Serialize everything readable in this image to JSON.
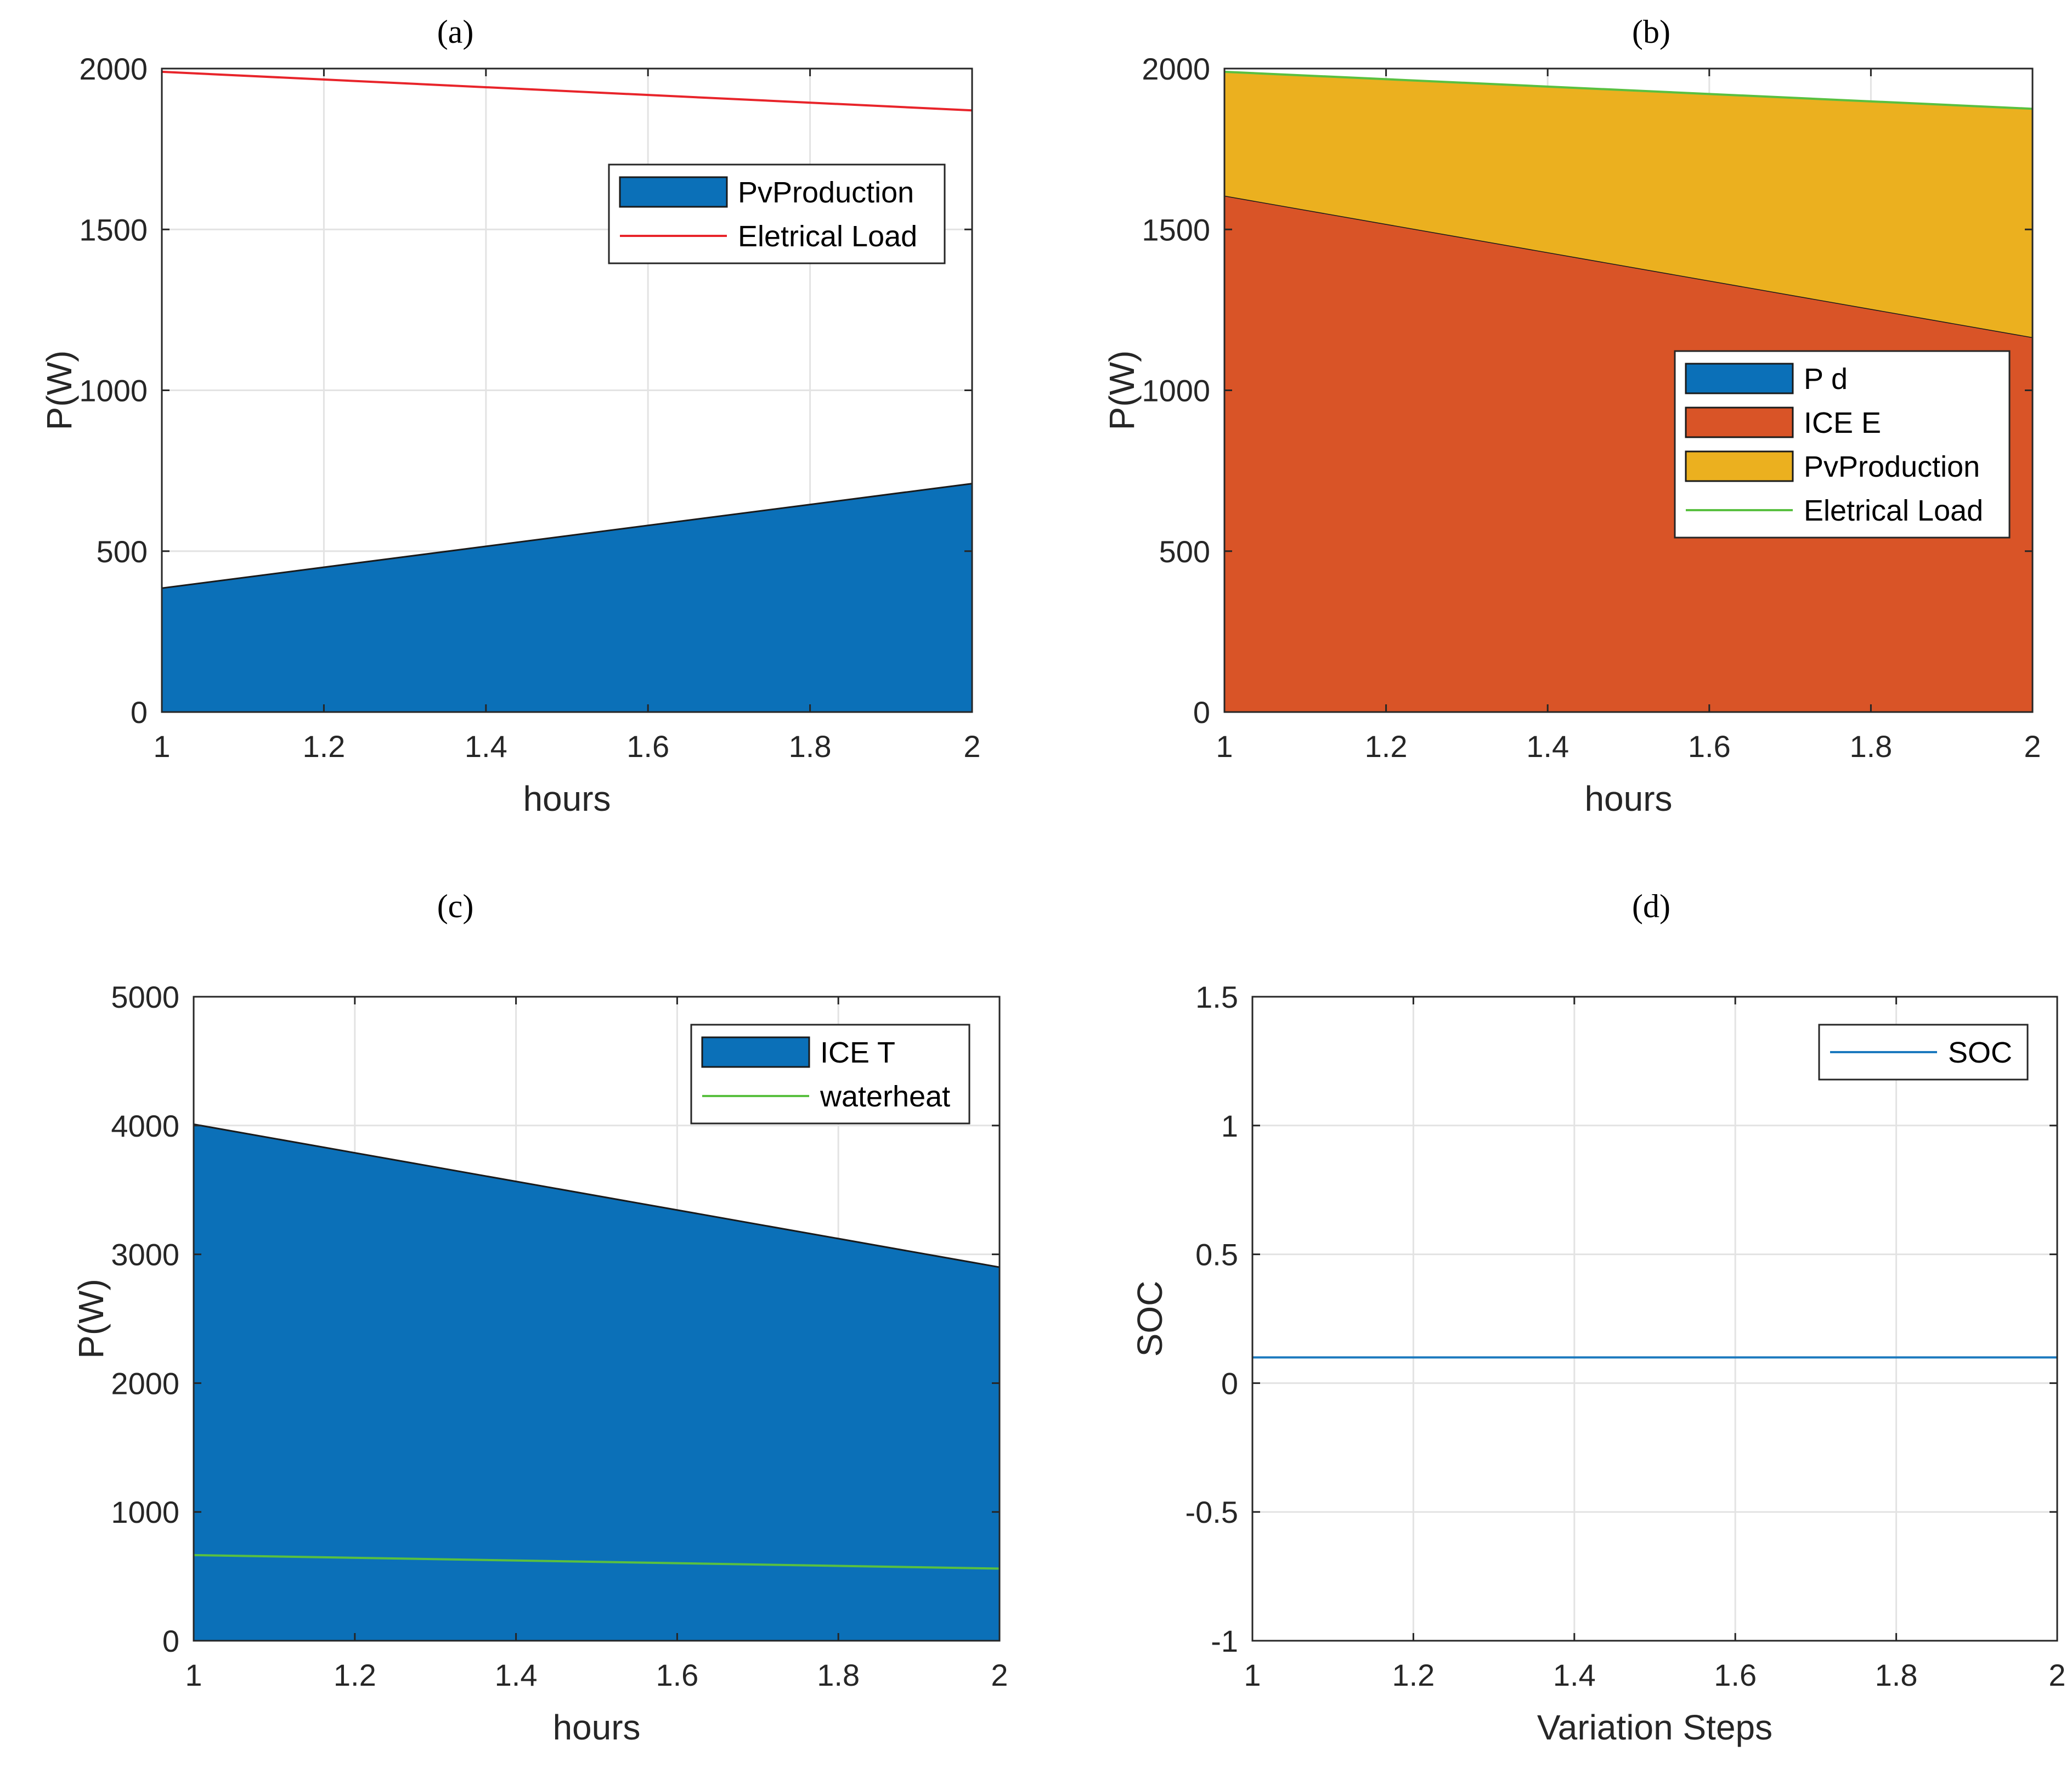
{
  "figure": {
    "panels": [
      "(a)",
      "(b)",
      "(c)",
      "(d)"
    ]
  },
  "colors": {
    "pd": "#0b70b8",
    "ice": "#d95427",
    "pv": "#ebb01f",
    "load_red": "#e8242a",
    "green": "#59c040",
    "soc": "#1b79be",
    "grid": "#e3e3e3",
    "axis": "#262626"
  },
  "chart_data": [
    {
      "id": "a",
      "type": "area",
      "title": "(a)",
      "xlabel": "hours",
      "ylabel": "P(W)",
      "xlim": [
        1,
        2
      ],
      "ylim": [
        0,
        2000
      ],
      "xticks": [
        "1",
        "1.2",
        "1.4",
        "1.6",
        "1.8",
        "2"
      ],
      "yticks": [
        "0",
        "500",
        "1000",
        "1500",
        "2000"
      ],
      "x": [
        1,
        2
      ],
      "series": [
        {
          "name": "PvProduction",
          "kind": "area",
          "color": "#0b70b8",
          "values": [
            385,
            710
          ]
        },
        {
          "name": "Eletrical Load",
          "kind": "line",
          "color": "#e8242a",
          "values": [
            1990,
            1870
          ]
        }
      ],
      "legend": [
        "PvProduction",
        "Eletrical Load"
      ],
      "legend_position": "top-right",
      "grid": true
    },
    {
      "id": "b",
      "type": "area",
      "title": "(b)",
      "xlabel": "hours",
      "ylabel": "P(W)",
      "xlim": [
        1,
        2
      ],
      "ylim": [
        0,
        2000
      ],
      "xticks": [
        "1",
        "1.2",
        "1.4",
        "1.6",
        "1.8",
        "2"
      ],
      "yticks": [
        "0",
        "500",
        "1000",
        "1500",
        "2000"
      ],
      "x": [
        1,
        2
      ],
      "stacked": true,
      "series": [
        {
          "name": "P d",
          "kind": "area",
          "color": "#0b70b8",
          "values": [
            0,
            0
          ]
        },
        {
          "name": "ICE E",
          "kind": "area",
          "color": "#d95427",
          "values": [
            1605,
            1165
          ]
        },
        {
          "name": "PvProduction",
          "kind": "area",
          "color": "#ebb01f",
          "values": [
            385,
            710
          ]
        },
        {
          "name": "Eletrical Load",
          "kind": "line",
          "color": "#59c040",
          "values": [
            1990,
            1875
          ]
        }
      ],
      "legend": [
        "P d",
        "ICE E",
        "PvProduction",
        "Eletrical Load"
      ],
      "legend_position": "center-right",
      "grid": true
    },
    {
      "id": "c",
      "type": "area",
      "title": "(c)",
      "xlabel": "hours",
      "ylabel": "P(W)",
      "xlim": [
        1,
        2
      ],
      "ylim": [
        0,
        5000
      ],
      "xticks": [
        "1",
        "1.2",
        "1.4",
        "1.6",
        "1.8",
        "2"
      ],
      "yticks": [
        "0",
        "1000",
        "2000",
        "3000",
        "4000",
        "5000"
      ],
      "x": [
        1,
        2
      ],
      "series": [
        {
          "name": "ICE T",
          "kind": "area",
          "color": "#0b70b8",
          "values": [
            4010,
            2900
          ]
        },
        {
          "name": "waterheat",
          "kind": "line",
          "color": "#59c040",
          "values": [
            665,
            560
          ]
        }
      ],
      "legend": [
        "ICE T",
        "waterheat"
      ],
      "legend_position": "top-right",
      "grid": true
    },
    {
      "id": "d",
      "type": "line",
      "title": "(d)",
      "xlabel": "Variation Steps",
      "ylabel": "SOC",
      "xlim": [
        1,
        2
      ],
      "ylim": [
        -1,
        1.5
      ],
      "xticks": [
        "1",
        "1.2",
        "1.4",
        "1.6",
        "1.8",
        "2"
      ],
      "yticks": [
        "-1",
        "-0.5",
        "0",
        "0.5",
        "1",
        "1.5"
      ],
      "x": [
        1,
        2
      ],
      "series": [
        {
          "name": "SOC",
          "kind": "line",
          "color": "#1b79be",
          "values": [
            0.1,
            0.1
          ]
        }
      ],
      "legend": [
        "SOC"
      ],
      "legend_position": "top-right",
      "grid": true
    }
  ]
}
